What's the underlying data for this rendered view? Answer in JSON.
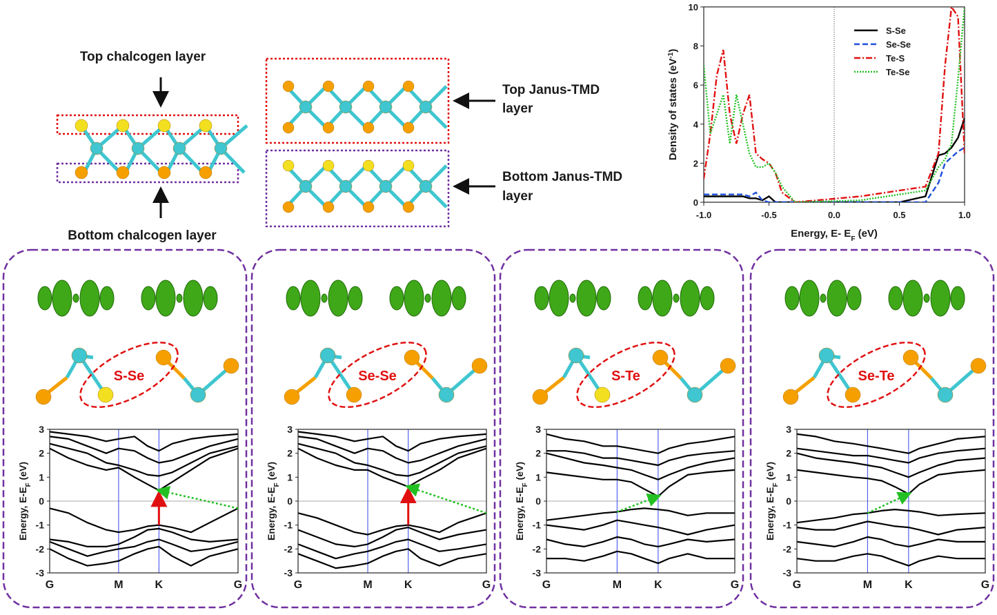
{
  "figure": {
    "top_left": {
      "top": "Top chalcogen layer",
      "bottom": "Bottom chalcogen layer"
    },
    "top_middle": {
      "top": [
        "Top Janus-TMD",
        "layer"
      ],
      "bottom": [
        "Bottom Janus-TMD",
        "layer"
      ]
    }
  },
  "chart_data": [
    {
      "type": "line",
      "ylabel": [
        "Density of states (eV",
        "-1",
        ")"
      ],
      "xlabel": [
        "Energy, E- E",
        "F",
        " (eV)"
      ],
      "xlim": [
        -1,
        1
      ],
      "ylim": [
        0,
        10
      ],
      "xticks": [
        {
          "value": -1,
          "label": "-1.0"
        },
        {
          "value": -0.5,
          "label": "-0.5"
        },
        {
          "value": 0,
          "label": "0.0"
        },
        {
          "value": 0.5,
          "label": "0.5"
        },
        {
          "value": 1,
          "label": "1.0"
        }
      ],
      "yticks": [
        0,
        2,
        4,
        6,
        8,
        10
      ],
      "zero_line": true,
      "legend": "upper right",
      "x": [
        -1.0,
        -0.95,
        -0.9,
        -0.85,
        -0.8,
        -0.75,
        -0.7,
        -0.65,
        -0.6,
        -0.55,
        -0.5,
        -0.45,
        -0.4,
        -0.3,
        0.2,
        0.5,
        0.7,
        0.8,
        0.85,
        0.9,
        0.95,
        1.0
      ],
      "series": [
        {
          "name": "S-Se",
          "color": "#000000",
          "dash": "none",
          "values": [
            0.3,
            0.3,
            0.3,
            0.3,
            0.3,
            0.3,
            0.3,
            0.2,
            0.2,
            0.1,
            0.3,
            0,
            0,
            0,
            0,
            0,
            0.3,
            2.4,
            2.5,
            2.8,
            3.3,
            4.3
          ]
        },
        {
          "name": "Se-Se",
          "color": "#1f4fd8",
          "dash": "8 4",
          "values": [
            0.4,
            0.4,
            0.4,
            0.4,
            0.4,
            0.4,
            0.4,
            0.3,
            0.5,
            0.1,
            0,
            0,
            0,
            0,
            0,
            0,
            0,
            1.0,
            2.0,
            2.3,
            2.6,
            2.8
          ]
        },
        {
          "name": "Te-S",
          "color": "#e01010",
          "dash": "9 3 2 3",
          "values": [
            1.2,
            3.5,
            6.5,
            7.8,
            4.5,
            3.0,
            4.5,
            5.5,
            2.5,
            2.2,
            2.0,
            1.5,
            0.5,
            0,
            0.3,
            0.6,
            0.8,
            2.5,
            7.0,
            10.0,
            9.5,
            2.5
          ]
        },
        {
          "name": "Te-Se",
          "color": "#22c022",
          "dash": "2 2",
          "values": [
            7.0,
            3.5,
            4.5,
            5.5,
            3.0,
            5.5,
            4.0,
            2.5,
            1.8,
            1.8,
            2.0,
            1.5,
            0.8,
            0,
            0.1,
            0.4,
            0.6,
            1.8,
            2.2,
            3.0,
            6.3,
            10.0
          ]
        }
      ]
    },
    {
      "type": "band",
      "label": "S-Se",
      "ylabel": [
        "Energy, E-E",
        "F",
        " (eV)"
      ],
      "ylim": [
        -3,
        3
      ],
      "yticks": [
        3,
        2,
        1,
        0,
        -1,
        -2,
        -3
      ],
      "xlim": [
        0,
        1
      ],
      "xticks": [
        {
          "value": 0,
          "label": "G"
        },
        {
          "value": 0.366,
          "label": "M"
        },
        {
          "value": 0.58,
          "label": "K"
        },
        {
          "value": 1,
          "label": "G"
        }
      ],
      "x": [
        0,
        0.1,
        0.2,
        0.3,
        0.366,
        0.45,
        0.52,
        0.58,
        0.65,
        0.75,
        0.85,
        1
      ],
      "bands": [
        [
          -0.3,
          -0.5,
          -0.9,
          -1.2,
          -1.3,
          -1.2,
          -1.05,
          -1.0,
          -1.1,
          -1.3,
          -0.9,
          -0.3
        ],
        [
          -1.6,
          -1.7,
          -1.9,
          -1.9,
          -1.8,
          -1.5,
          -1.2,
          -1.15,
          -1.3,
          -1.6,
          -1.7,
          -1.6
        ],
        [
          -1.7,
          -2.0,
          -2.3,
          -2.1,
          -2.0,
          -1.9,
          -1.7,
          -1.6,
          -1.8,
          -2.1,
          -2.0,
          -1.7
        ],
        [
          -2.0,
          -2.4,
          -2.7,
          -2.6,
          -2.5,
          -2.2,
          -2.0,
          -1.9,
          -2.3,
          -2.7,
          -2.3,
          -2.0
        ],
        [
          2.2,
          1.8,
          1.5,
          1.3,
          1.4,
          1.0,
          0.7,
          0.45,
          0.8,
          1.3,
          1.8,
          2.2
        ],
        [
          2.4,
          2.2,
          2.0,
          1.6,
          1.5,
          1.3,
          1.1,
          1.05,
          1.2,
          1.6,
          2.0,
          2.3
        ],
        [
          2.7,
          2.6,
          2.3,
          2.0,
          2.2,
          2.1,
          1.8,
          1.6,
          1.7,
          2.0,
          2.3,
          2.6
        ],
        [
          2.9,
          2.8,
          2.7,
          2.5,
          2.6,
          2.7,
          2.3,
          2.1,
          2.4,
          2.6,
          2.7,
          2.8
        ]
      ],
      "arrows": [
        {
          "color": "#e01010",
          "from": [
            0.58,
            -1.0
          ],
          "to": [
            0.58,
            0.45
          ]
        },
        {
          "color": "#22c022",
          "from": [
            1,
            -0.3
          ],
          "to": [
            0.58,
            0.45
          ]
        }
      ]
    },
    {
      "type": "band",
      "label": "Se-Se",
      "ylabel": [
        "Energy, E-E",
        "F",
        " (eV)"
      ],
      "ylim": [
        -3,
        3
      ],
      "yticks": [
        3,
        2,
        1,
        0,
        -1,
        -2,
        -3
      ],
      "xlim": [
        0,
        1
      ],
      "xticks": [
        {
          "value": 0,
          "label": "G"
        },
        {
          "value": 0.37,
          "label": "M"
        },
        {
          "value": 0.585,
          "label": "K"
        },
        {
          "value": 1,
          "label": "G"
        }
      ],
      "x": [
        0,
        0.1,
        0.2,
        0.3,
        0.37,
        0.45,
        0.52,
        0.585,
        0.65,
        0.75,
        0.85,
        1
      ],
      "bands": [
        [
          -0.5,
          -0.7,
          -1.0,
          -1.3,
          -1.4,
          -1.2,
          -1.05,
          -1.0,
          -1.1,
          -1.3,
          -0.9,
          -0.5
        ],
        [
          -1.2,
          -1.5,
          -1.8,
          -1.9,
          -1.8,
          -1.5,
          -1.2,
          -1.1,
          -1.3,
          -1.6,
          -1.4,
          -1.2
        ],
        [
          -1.8,
          -2.1,
          -2.4,
          -2.2,
          -2.1,
          -1.9,
          -1.7,
          -1.6,
          -1.8,
          -2.1,
          -2.0,
          -1.8
        ],
        [
          -2.2,
          -2.5,
          -2.8,
          -2.7,
          -2.6,
          -2.3,
          -2.1,
          -2.0,
          -2.4,
          -2.7,
          -2.4,
          -2.2
        ],
        [
          2.2,
          1.8,
          1.5,
          1.3,
          1.3,
          1.0,
          0.8,
          0.6,
          0.9,
          1.3,
          1.8,
          2.2
        ],
        [
          2.4,
          2.2,
          2.0,
          1.6,
          1.5,
          1.3,
          1.1,
          1.05,
          1.2,
          1.6,
          2.0,
          2.3
        ],
        [
          2.7,
          2.6,
          2.3,
          2.0,
          2.2,
          2.1,
          1.8,
          1.6,
          1.7,
          2.0,
          2.3,
          2.6
        ],
        [
          2.9,
          2.8,
          2.7,
          2.5,
          2.6,
          2.7,
          2.3,
          2.1,
          2.4,
          2.6,
          2.7,
          2.8
        ]
      ],
      "arrows": [
        {
          "color": "#e01010",
          "from": [
            0.585,
            -1.0
          ],
          "to": [
            0.585,
            0.6
          ]
        },
        {
          "color": "#22c022",
          "from": [
            1,
            -0.5
          ],
          "to": [
            0.585,
            0.6
          ]
        }
      ]
    },
    {
      "type": "band",
      "label": "S-Te",
      "ylabel": [
        "Energy, E-E",
        "F",
        " (eV)"
      ],
      "ylim": [
        -3,
        3
      ],
      "yticks": [
        3,
        2,
        1,
        0,
        -1,
        -2,
        -3
      ],
      "xlim": [
        0,
        1
      ],
      "xticks": [
        {
          "value": 0,
          "label": "G"
        },
        {
          "value": 0.375,
          "label": "M"
        },
        {
          "value": 0.593,
          "label": "K"
        },
        {
          "value": 1,
          "label": "G"
        }
      ],
      "x": [
        0,
        0.1,
        0.2,
        0.3,
        0.375,
        0.45,
        0.52,
        0.593,
        0.65,
        0.75,
        0.85,
        1
      ],
      "bands": [
        [
          -0.8,
          -0.7,
          -0.6,
          -0.5,
          -0.45,
          -0.35,
          -0.3,
          -0.35,
          -0.4,
          -0.6,
          -0.5,
          -0.5
        ],
        [
          -1.0,
          -1.1,
          -1.2,
          -1.0,
          -0.8,
          -0.9,
          -1.0,
          -1.1,
          -1.2,
          -1.4,
          -1.2,
          -1.0
        ],
        [
          -1.6,
          -1.8,
          -1.9,
          -1.7,
          -1.5,
          -1.6,
          -1.8,
          -1.9,
          -1.8,
          -1.6,
          -1.7,
          -1.6
        ],
        [
          -2.4,
          -2.4,
          -2.5,
          -2.3,
          -2.1,
          -2.2,
          -2.4,
          -2.6,
          -2.4,
          -2.2,
          -2.4,
          -2.4
        ],
        [
          1.2,
          1.1,
          1.0,
          0.9,
          0.9,
          0.8,
          0.5,
          0.2,
          0.6,
          1.1,
          1.2,
          1.3
        ],
        [
          2.0,
          1.8,
          1.6,
          1.5,
          1.4,
          1.3,
          1.1,
          0.9,
          1.1,
          1.4,
          1.6,
          1.8
        ],
        [
          2.1,
          2.1,
          2.0,
          1.8,
          1.8,
          1.7,
          1.6,
          1.5,
          1.7,
          1.9,
          2.0,
          2.1
        ],
        [
          2.8,
          2.6,
          2.5,
          2.3,
          2.3,
          2.2,
          2.1,
          2.0,
          2.2,
          2.4,
          2.5,
          2.7
        ]
      ],
      "arrows": [
        {
          "color": "#22c022",
          "from": [
            0.375,
            -0.45
          ],
          "to": [
            0.593,
            0.2
          ]
        }
      ]
    },
    {
      "type": "band",
      "label": "Se-Te",
      "ylabel": [
        "Energy, E-E",
        "F",
        " (eV)"
      ],
      "ylim": [
        -3,
        3
      ],
      "yticks": [
        3,
        2,
        1,
        0,
        -1,
        -2,
        -3
      ],
      "xlim": [
        0,
        1
      ],
      "xticks": [
        {
          "value": 0,
          "label": "G"
        },
        {
          "value": 0.375,
          "label": "M"
        },
        {
          "value": 0.593,
          "label": "K"
        },
        {
          "value": 1,
          "label": "G"
        }
      ],
      "x": [
        0,
        0.1,
        0.2,
        0.3,
        0.375,
        0.45,
        0.52,
        0.593,
        0.65,
        0.75,
        0.85,
        1
      ],
      "bands": [
        [
          -0.9,
          -0.8,
          -0.7,
          -0.55,
          -0.5,
          -0.4,
          -0.35,
          -0.4,
          -0.45,
          -0.6,
          -0.55,
          -0.5
        ],
        [
          -1.1,
          -1.2,
          -1.2,
          -1.0,
          -0.85,
          -0.95,
          -1.05,
          -1.1,
          -1.2,
          -1.4,
          -1.2,
          -1.1
        ],
        [
          -1.7,
          -1.8,
          -1.9,
          -1.7,
          -1.5,
          -1.6,
          -1.8,
          -1.9,
          -1.8,
          -1.6,
          -1.7,
          -1.7
        ],
        [
          -2.4,
          -2.5,
          -2.5,
          -2.3,
          -2.2,
          -2.3,
          -2.5,
          -2.7,
          -2.5,
          -2.3,
          -2.4,
          -2.4
        ],
        [
          1.3,
          1.2,
          1.1,
          1.0,
          0.95,
          0.85,
          0.6,
          0.3,
          0.7,
          1.1,
          1.2,
          1.3
        ],
        [
          2.0,
          1.8,
          1.7,
          1.6,
          1.5,
          1.4,
          1.2,
          1.0,
          1.2,
          1.5,
          1.7,
          1.8
        ],
        [
          2.2,
          2.1,
          2.0,
          1.9,
          1.9,
          1.8,
          1.7,
          1.6,
          1.8,
          2.0,
          2.1,
          2.2
        ],
        [
          2.8,
          2.7,
          2.5,
          2.4,
          2.3,
          2.2,
          2.1,
          2.0,
          2.2,
          2.4,
          2.6,
          2.7
        ]
      ],
      "arrows": [
        {
          "color": "#22c022",
          "from": [
            0.375,
            -0.5
          ],
          "to": [
            0.593,
            0.3
          ]
        }
      ]
    }
  ]
}
